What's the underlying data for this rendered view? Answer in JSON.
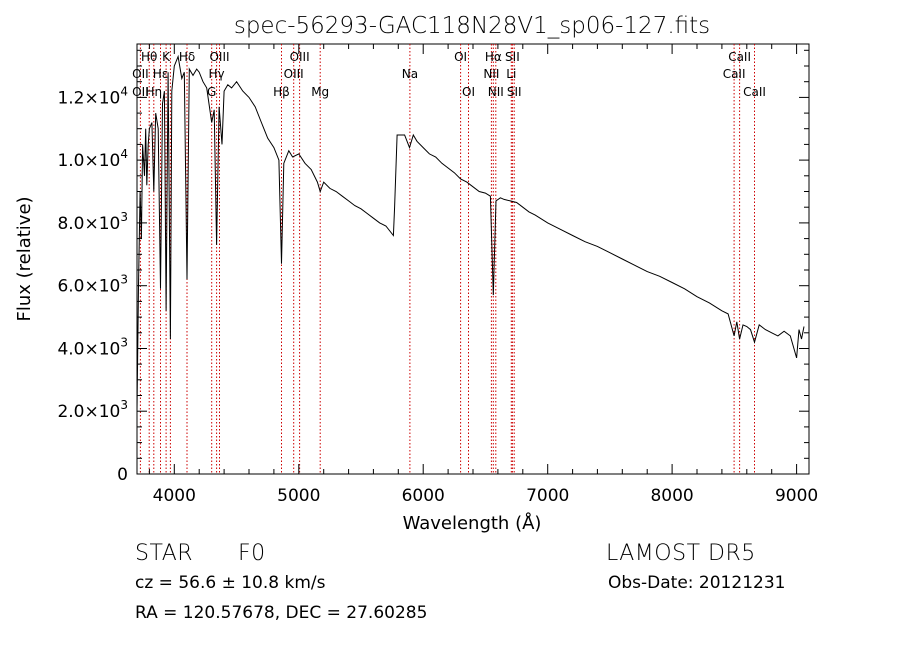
{
  "chart_data": {
    "type": "line",
    "title": "spec-56293-GAC118N28V1_sp06-127.fits",
    "xlabel": "Wavelength (Å)",
    "ylabel": "Flux (relative)",
    "xlim": [
      3700,
      9100
    ],
    "ylim": [
      0,
      13700
    ],
    "grid": false,
    "x_ticks": [
      4000,
      5000,
      6000,
      7000,
      8000,
      9000
    ],
    "x_tick_labels": [
      "4000",
      "5000",
      "6000",
      "7000",
      "8000",
      "9000"
    ],
    "y_ticks": [
      0,
      2000,
      4000,
      6000,
      8000,
      10000,
      12000
    ],
    "y_tick_labels": [
      {
        "mant": "0",
        "exp": ""
      },
      {
        "mant": "2.0×10",
        "exp": "3"
      },
      {
        "mant": "4.0×10",
        "exp": "3"
      },
      {
        "mant": "6.0×10",
        "exp": "3"
      },
      {
        "mant": "8.0×10",
        "exp": "3"
      },
      {
        "mant": "1.0×10",
        "exp": "4"
      },
      {
        "mant": "1.2×10",
        "exp": "4"
      }
    ],
    "series": [
      {
        "values": [
          [
            3700,
            2000
          ],
          [
            3712,
            6000
          ],
          [
            3725,
            9000
          ],
          [
            3735,
            7500
          ],
          [
            3745,
            10500
          ],
          [
            3760,
            9500
          ],
          [
            3770,
            11000
          ],
          [
            3779,
            9200
          ],
          [
            3790,
            10500
          ],
          [
            3800,
            11000
          ],
          [
            3820,
            11200
          ],
          [
            3835,
            9000
          ],
          [
            3850,
            11500
          ],
          [
            3870,
            11000
          ],
          [
            3889,
            5900
          ],
          [
            3905,
            11800
          ],
          [
            3920,
            12200
          ],
          [
            3934,
            5200
          ],
          [
            3950,
            12800
          ],
          [
            3968,
            4300
          ],
          [
            3980,
            12200
          ],
          [
            4000,
            13000
          ],
          [
            4030,
            13300
          ],
          [
            4060,
            12600
          ],
          [
            4080,
            12800
          ],
          [
            4102,
            6200
          ],
          [
            4120,
            12900
          ],
          [
            4150,
            12700
          ],
          [
            4180,
            12900
          ],
          [
            4200,
            12800
          ],
          [
            4230,
            12500
          ],
          [
            4260,
            12300
          ],
          [
            4300,
            11200
          ],
          [
            4320,
            11600
          ],
          [
            4340,
            7300
          ],
          [
            4360,
            11700
          ],
          [
            4383,
            10500
          ],
          [
            4400,
            12200
          ],
          [
            4430,
            12400
          ],
          [
            4460,
            12300
          ],
          [
            4500,
            12500
          ],
          [
            4550,
            12200
          ],
          [
            4600,
            12000
          ],
          [
            4650,
            11700
          ],
          [
            4700,
            11200
          ],
          [
            4750,
            10700
          ],
          [
            4800,
            10400
          ],
          [
            4840,
            10000
          ],
          [
            4861,
            6700
          ],
          [
            4880,
            9900
          ],
          [
            4920,
            10300
          ],
          [
            4950,
            10100
          ],
          [
            5000,
            10200
          ],
          [
            5050,
            9900
          ],
          [
            5100,
            9700
          ],
          [
            5150,
            9300
          ],
          [
            5172,
            9000
          ],
          [
            5200,
            9300
          ],
          [
            5250,
            9100
          ],
          [
            5300,
            9000
          ],
          [
            5350,
            8850
          ],
          [
            5400,
            8700
          ],
          [
            5450,
            8550
          ],
          [
            5500,
            8450
          ],
          [
            5550,
            8300
          ],
          [
            5600,
            8150
          ],
          [
            5650,
            8000
          ],
          [
            5700,
            7900
          ],
          [
            5760,
            7600
          ],
          [
            5770,
            8500
          ],
          [
            5790,
            10800
          ],
          [
            5850,
            10800
          ],
          [
            5890,
            10400
          ],
          [
            5920,
            10800
          ],
          [
            5950,
            10600
          ],
          [
            6000,
            10400
          ],
          [
            6050,
            10200
          ],
          [
            6100,
            10100
          ],
          [
            6150,
            9900
          ],
          [
            6200,
            9750
          ],
          [
            6250,
            9600
          ],
          [
            6300,
            9400
          ],
          [
            6350,
            9300
          ],
          [
            6400,
            9150
          ],
          [
            6450,
            9000
          ],
          [
            6500,
            8950
          ],
          [
            6540,
            8850
          ],
          [
            6563,
            5700
          ],
          [
            6585,
            8700
          ],
          [
            6620,
            8800
          ],
          [
            6650,
            8750
          ],
          [
            6700,
            8700
          ],
          [
            6750,
            8650
          ],
          [
            6800,
            8500
          ],
          [
            6850,
            8350
          ],
          [
            6900,
            8250
          ],
          [
            7000,
            8000
          ],
          [
            7100,
            7800
          ],
          [
            7200,
            7600
          ],
          [
            7300,
            7400
          ],
          [
            7400,
            7250
          ],
          [
            7500,
            7050
          ],
          [
            7600,
            6850
          ],
          [
            7700,
            6650
          ],
          [
            7800,
            6450
          ],
          [
            7900,
            6300
          ],
          [
            8000,
            6100
          ],
          [
            8100,
            5900
          ],
          [
            8200,
            5650
          ],
          [
            8300,
            5450
          ],
          [
            8400,
            5200
          ],
          [
            8450,
            5100
          ],
          [
            8498,
            4400
          ],
          [
            8520,
            4850
          ],
          [
            8542,
            4300
          ],
          [
            8570,
            4750
          ],
          [
            8600,
            4700
          ],
          [
            8630,
            4600
          ],
          [
            8662,
            4200
          ],
          [
            8700,
            4750
          ],
          [
            8750,
            4600
          ],
          [
            8800,
            4500
          ],
          [
            8850,
            4400
          ],
          [
            8900,
            4550
          ],
          [
            8950,
            4400
          ],
          [
            9000,
            3700
          ],
          [
            9020,
            4600
          ],
          [
            9040,
            4300
          ],
          [
            9060,
            4700
          ]
        ]
      }
    ],
    "annotations": [
      {
        "text": "Hθ",
        "row": 0,
        "x": 3798
      },
      {
        "text": "K",
        "row": 0,
        "x": 3934
      },
      {
        "text": "Hδ",
        "row": 0,
        "x": 4102
      },
      {
        "text": "OII",
        "row": 1,
        "x": 3727
      },
      {
        "text": "Hε",
        "row": 1,
        "x": 3889
      },
      {
        "text": "OII",
        "row": 2,
        "x": 3727
      },
      {
        "text": "Hη",
        "row": 2,
        "x": 3835
      },
      {
        "text": "OIII",
        "row": 0,
        "x": 4363
      },
      {
        "text": "Hγ",
        "row": 1,
        "x": 4340
      },
      {
        "text": "G",
        "row": 2,
        "x": 4300
      },
      {
        "text": "OIII",
        "row": 0,
        "x": 5007
      },
      {
        "text": "OIII",
        "row": 1,
        "x": 4959
      },
      {
        "text": "Hβ",
        "row": 2,
        "x": 4861
      },
      {
        "text": "Mg",
        "row": 2,
        "x": 5172
      },
      {
        "text": "Na",
        "row": 1,
        "x": 5893
      },
      {
        "text": "OI",
        "row": 0,
        "x": 6300
      },
      {
        "text": "OI",
        "row": 2,
        "x": 6364
      },
      {
        "text": "Hα",
        "row": 0,
        "x": 6563
      },
      {
        "text": "SII",
        "row": 0,
        "x": 6717
      },
      {
        "text": "NII",
        "row": 1,
        "x": 6548
      },
      {
        "text": "Li",
        "row": 1,
        "x": 6708
      },
      {
        "text": "NII",
        "row": 2,
        "x": 6583
      },
      {
        "text": "SII",
        "row": 2,
        "x": 6731
      },
      {
        "text": "CaII",
        "row": 0,
        "x": 8542
      },
      {
        "text": "CaII",
        "row": 1,
        "x": 8498
      },
      {
        "text": "CaII",
        "row": 2,
        "x": 8662
      }
    ],
    "line_markers": [
      3727,
      3798,
      3835,
      3889,
      3934,
      3968,
      4102,
      4300,
      4340,
      4363,
      4861,
      4959,
      5007,
      5172,
      5893,
      6300,
      6364,
      6548,
      6563,
      6583,
      6708,
      6717,
      6731,
      8498,
      8542,
      8662
    ],
    "colors": {
      "spectrum": "#000000",
      "markers": "#cc0000",
      "axes": "#000000"
    }
  },
  "info": {
    "object_type": "STAR",
    "subclass": "F0",
    "survey": "LAMOST  DR5",
    "cz": "cz = 56.6 ± 10.8 km/s",
    "obs_date": "Obs-Date: 20121231",
    "coords": "RA = 120.57678, DEC =  27.60285"
  }
}
